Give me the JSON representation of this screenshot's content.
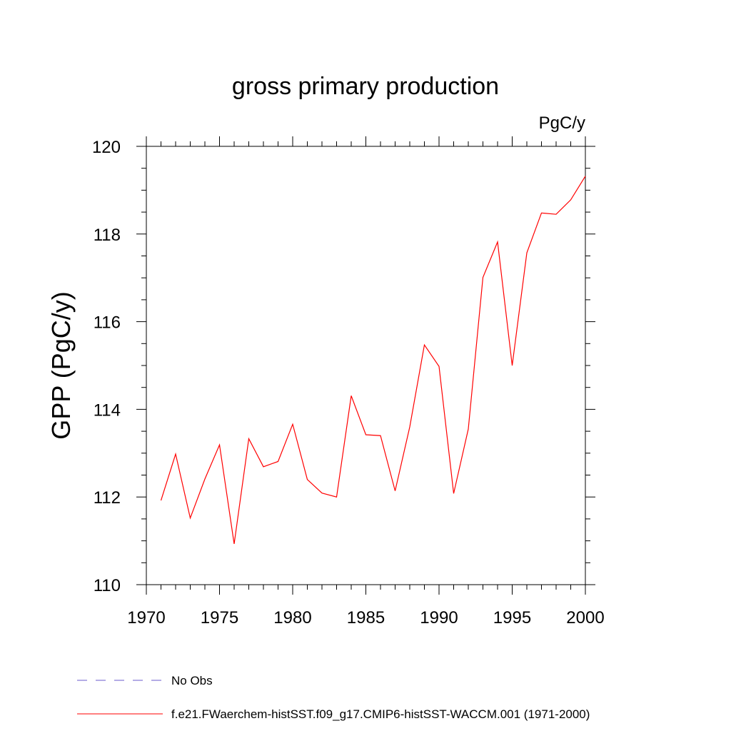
{
  "chart_data": {
    "type": "line",
    "title": "gross primary production",
    "units": "PgC/y",
    "xlabel": "",
    "ylabel": "GPP  (PgC/y)",
    "xlim": [
      1970,
      2000
    ],
    "ylim": [
      110,
      120
    ],
    "x_ticks": [
      "1970",
      "1975",
      "1980",
      "1985",
      "1990",
      "1995",
      "2000"
    ],
    "y_ticks": [
      "110",
      "112",
      "114",
      "116",
      "118",
      "120"
    ],
    "grid": false,
    "legend_position": "bottom",
    "series": [
      {
        "name": "f.e21.FWaerchem-histSST.f09_g17.CMIP6-histSST-WACCM.001 (1971-2000)",
        "color": "#ff0000",
        "style": "solid",
        "x": [
          1971,
          1972,
          1973,
          1974,
          1975,
          1976,
          1977,
          1978,
          1979,
          1980,
          1981,
          1982,
          1983,
          1984,
          1985,
          1986,
          1987,
          1988,
          1989,
          1990,
          1991,
          1992,
          1993,
          1994,
          1995,
          1996,
          1997,
          1998,
          1999,
          2000
        ],
        "y": [
          111.92,
          112.98,
          111.52,
          112.41,
          113.19,
          110.93,
          113.33,
          112.69,
          112.81,
          113.66,
          112.4,
          112.09,
          112.0,
          114.31,
          113.42,
          113.4,
          112.14,
          113.6,
          115.47,
          114.98,
          112.08,
          113.55,
          117.01,
          117.82,
          115.0,
          117.57,
          118.48,
          118.45,
          118.78,
          119.32
        ]
      },
      {
        "name": "No Obs",
        "color": "#6a5acd",
        "style": "dashed",
        "x": [],
        "y": []
      }
    ]
  }
}
